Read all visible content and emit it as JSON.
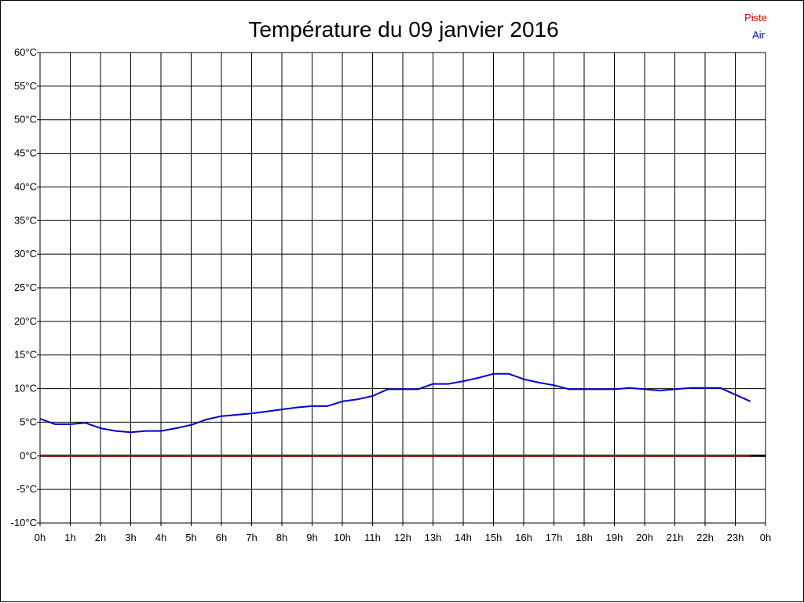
{
  "chart_data": {
    "type": "line",
    "title": "Température du 09 janvier 2016",
    "xlabel": "",
    "ylabel": "",
    "x_ticks": [
      "0h",
      "1h",
      "2h",
      "3h",
      "4h",
      "5h",
      "6h",
      "7h",
      "8h",
      "9h",
      "10h",
      "11h",
      "12h",
      "13h",
      "14h",
      "15h",
      "16h",
      "17h",
      "18h",
      "19h",
      "20h",
      "21h",
      "22h",
      "23h",
      "0h"
    ],
    "y_ticks": [
      "60°C",
      "55°C",
      "50°C",
      "45°C",
      "40°C",
      "35°C",
      "30°C",
      "25°C",
      "20°C",
      "15°C",
      "10°C",
      "5°C",
      "0°C",
      "-5°C",
      "-10°C"
    ],
    "xlim": [
      0,
      24
    ],
    "ylim": [
      -10,
      60
    ],
    "grid": true,
    "legend_position": "top-right",
    "series": [
      {
        "name": "Piste",
        "color": "#cc0000",
        "x": [
          0,
          23.5
        ],
        "y": [
          0,
          0
        ]
      },
      {
        "name": "Air",
        "color": "#0000cc",
        "x": [
          0,
          0.5,
          1,
          1.5,
          2,
          2.5,
          3,
          3.5,
          4,
          4.5,
          5,
          5.5,
          6,
          6.5,
          7,
          7.5,
          8,
          8.5,
          9,
          9.5,
          10,
          10.5,
          11,
          11.5,
          12,
          12.5,
          13,
          13.5,
          14,
          14.5,
          15,
          15.5,
          16,
          16.5,
          17,
          17.5,
          18,
          18.5,
          19,
          19.5,
          20,
          20.5,
          21,
          21.5,
          22,
          22.5,
          23,
          23.5
        ],
        "y": [
          5.5,
          4.7,
          4.7,
          4.9,
          4.1,
          3.7,
          3.5,
          3.7,
          3.7,
          4.1,
          4.6,
          5.4,
          5.9,
          6.1,
          6.3,
          6.6,
          6.9,
          7.2,
          7.4,
          7.4,
          8.1,
          8.4,
          8.9,
          9.9,
          9.9,
          9.9,
          10.7,
          10.7,
          11.1,
          11.6,
          12.2,
          12.2,
          11.4,
          10.9,
          10.5,
          9.9,
          9.9,
          9.9,
          9.9,
          10.1,
          9.9,
          9.7,
          9.9,
          10.1,
          10.1,
          10.1,
          9.1,
          8.1
        ]
      }
    ],
    "baseline_color": "#000000"
  }
}
